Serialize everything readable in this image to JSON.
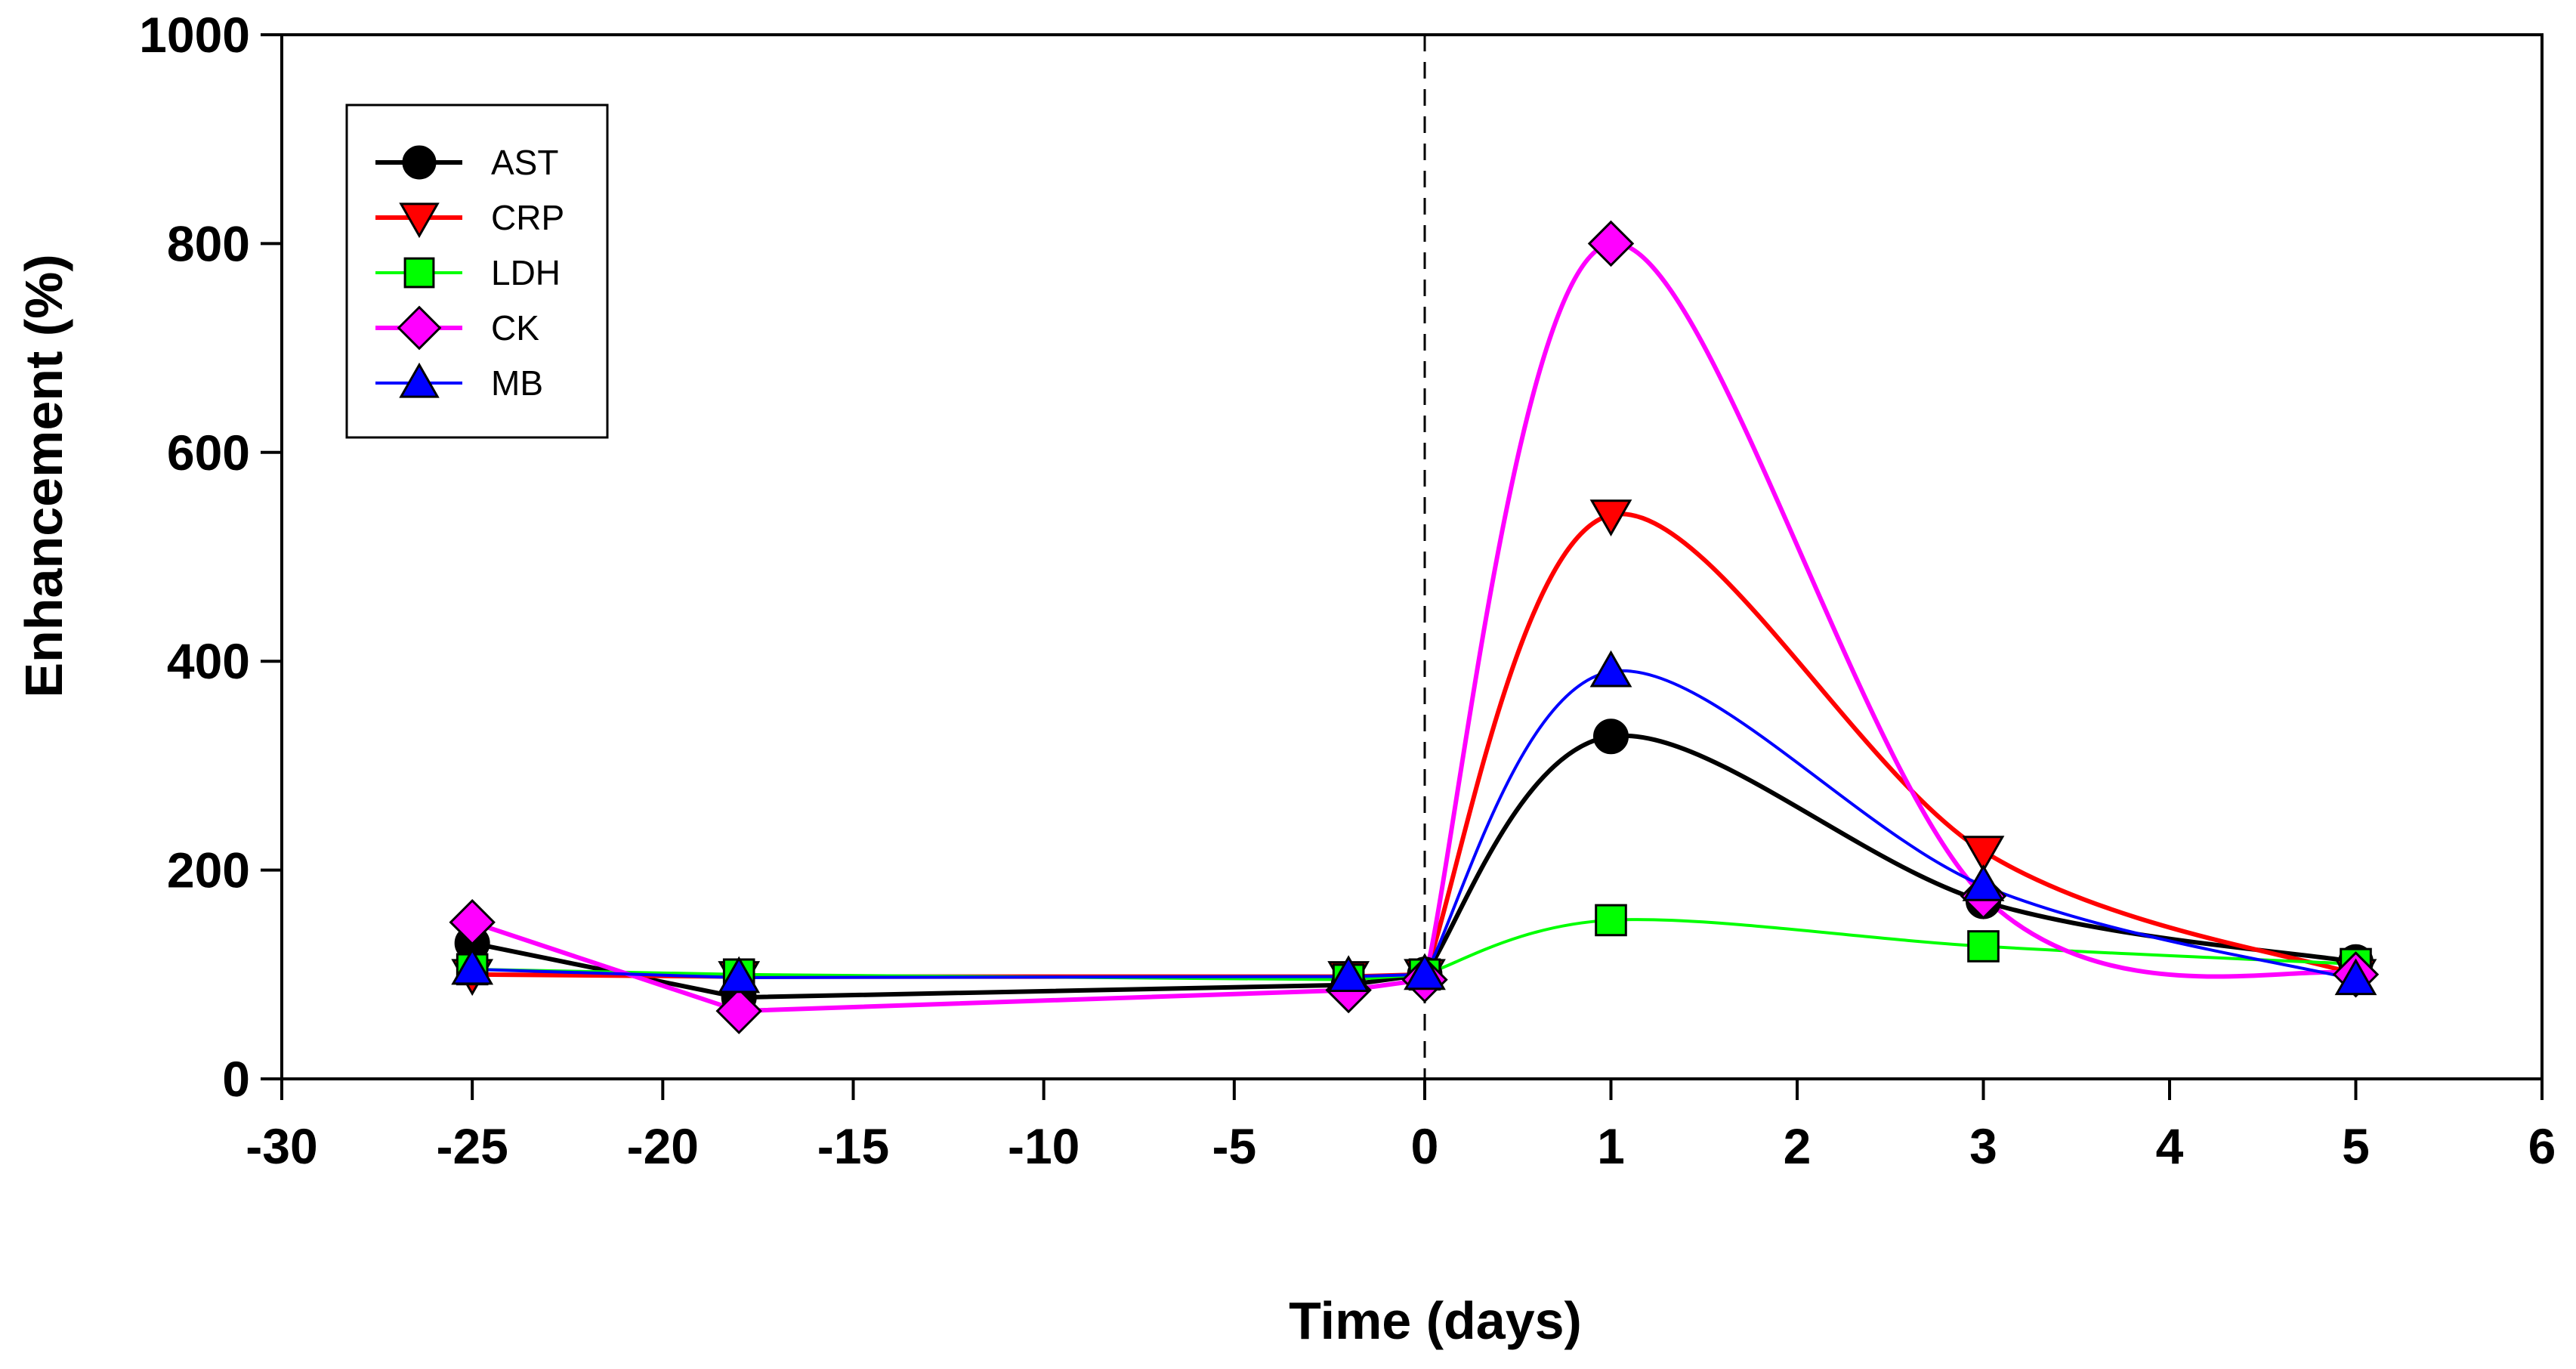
{
  "chart_data": {
    "type": "line",
    "title": "",
    "xlabel": "Time (days)",
    "ylabel": "Enhancement (%)",
    "ylim": [
      0,
      1000
    ],
    "yticks": [
      "0",
      "200",
      "400",
      "600",
      "800",
      "1000"
    ],
    "xticks": [
      "-30",
      "-25",
      "-20",
      "-15",
      "-10",
      "-5",
      "0",
      "0",
      "1",
      "2",
      "3",
      "4",
      "5",
      "6"
    ],
    "x_segments": [
      {
        "range": [
          -30,
          0
        ],
        "ticks": [
          -30,
          -25,
          -20,
          -15,
          -10,
          -5,
          0
        ]
      },
      {
        "range": [
          0,
          6
        ],
        "ticks": [
          0,
          1,
          2,
          3,
          4,
          5,
          6
        ]
      }
    ],
    "reference_line": {
      "x": 0,
      "style": "dashed"
    },
    "legend_position": "top-left",
    "series": [
      {
        "name": "AST",
        "color": "#000000",
        "marker": "circle",
        "pre": {
          "x": [
            -25,
            -18,
            -2,
            0
          ],
          "y": [
            130,
            78,
            90,
            100
          ]
        },
        "post": {
          "x": [
            0,
            1,
            3,
            5
          ],
          "y": [
            100,
            328,
            170,
            112
          ]
        }
      },
      {
        "name": "CRP",
        "color": "#ff0000",
        "marker": "triangle-down",
        "pre": {
          "x": [
            -25,
            -18,
            -2,
            0
          ],
          "y": [
            100,
            98,
            98,
            100
          ]
        },
        "post": {
          "x": [
            0,
            1,
            3,
            5
          ],
          "y": [
            100,
            540,
            218,
            100
          ]
        }
      },
      {
        "name": "LDH",
        "color": "#00ff00",
        "marker": "square",
        "pre": {
          "x": [
            -25,
            -18,
            -2,
            0
          ],
          "y": [
            105,
            100,
            95,
            100
          ]
        },
        "post": {
          "x": [
            0,
            1,
            3,
            5
          ],
          "y": [
            100,
            152,
            127,
            110
          ]
        }
      },
      {
        "name": "CK",
        "color": "#ff00ff",
        "marker": "diamond",
        "pre": {
          "x": [
            -25,
            -18,
            -2,
            0
          ],
          "y": [
            150,
            65,
            85,
            95
          ]
        },
        "post": {
          "x": [
            0,
            1,
            3,
            5
          ],
          "y": [
            95,
            800,
            175,
            100
          ]
        }
      },
      {
        "name": "MB",
        "color": "#0000ff",
        "marker": "triangle-up",
        "pre": {
          "x": [
            -25,
            -18,
            -2,
            0
          ],
          "y": [
            105,
            97,
            98,
            100
          ]
        },
        "post": {
          "x": [
            0,
            1,
            3,
            5
          ],
          "y": [
            100,
            390,
            185,
            95
          ]
        }
      }
    ]
  }
}
